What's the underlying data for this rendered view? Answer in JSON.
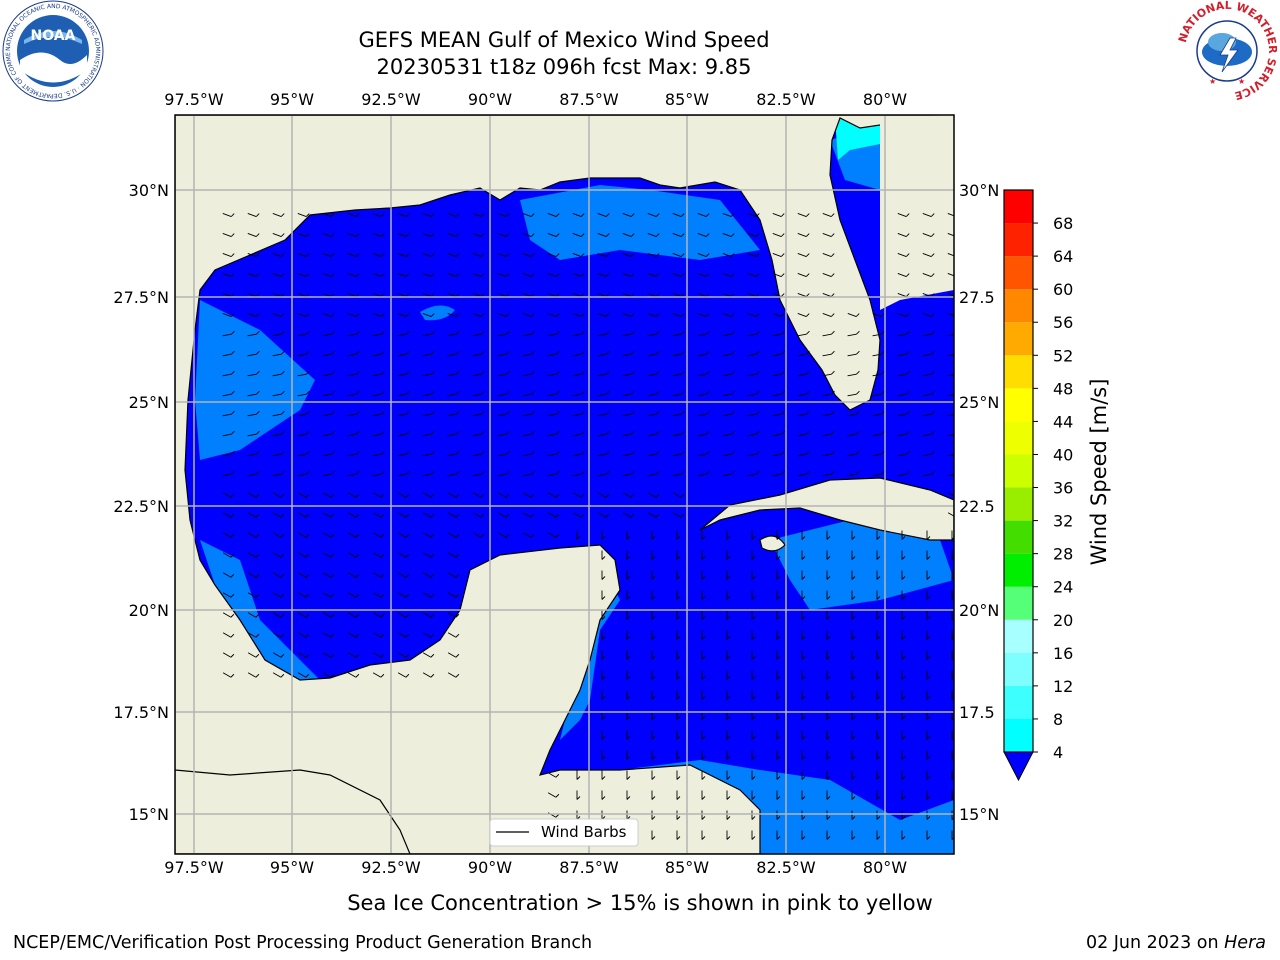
{
  "title": {
    "line1": "GEFS MEAN Gulf of Mexico Wind Speed",
    "line2": "20230531 t18z 096h fcst   Max: 9.85"
  },
  "map": {
    "lon_labels": [
      "97.5°W",
      "95°W",
      "92.5°W",
      "90°W",
      "87.5°W",
      "85°W",
      "82.5°W",
      "80°W"
    ],
    "lat_labels_left": [
      "30°N",
      "27.5°N",
      "25°N",
      "22.5°N",
      "20°N",
      "17.5°N",
      "15°N"
    ],
    "lat_labels_right": [
      "30°N",
      "27.5",
      "25°N",
      "22.5",
      "20°N",
      "17.5",
      "15°N"
    ],
    "legend_label": "Wind Barbs",
    "colors": {
      "land": "#eeeedd",
      "wind_4_8": "#0000ff",
      "wind_lt4": "#0080ff",
      "wind_8_12": "#00ffff",
      "grid": "#b4b4b4"
    }
  },
  "colorbar": {
    "label": "Wind Speed [m/s]",
    "ticks": [
      "4",
      "8",
      "12",
      "16",
      "20",
      "24",
      "28",
      "32",
      "36",
      "40",
      "44",
      "48",
      "52",
      "56",
      "60",
      "64",
      "68"
    ],
    "colors": [
      "#0080ff",
      "#00ffff",
      "#3dfffd",
      "#7dffff",
      "#a8ffff",
      "#55ff77",
      "#00ee00",
      "#44dd00",
      "#99ee00",
      "#ccff00",
      "#eeff00",
      "#ffff00",
      "#ffdd00",
      "#ffaa00",
      "#ff8800",
      "#ff5500",
      "#ff2200",
      "#ff0000"
    ]
  },
  "logos": {
    "noaa_text": "NOAA",
    "noaa_ring": "NATIONAL OCEANIC AND ATMOSPHERIC ADMINISTRATION · U.S. DEPARTMENT OF COMMERCE",
    "nws_ring": "NATIONAL WEATHER SERVICE"
  },
  "caption": "Sea Ice Concentration > 15% is shown in pink to yellow",
  "footer": {
    "left": "NCEP/EMC/Verification Post Processing Product Generation Branch",
    "right_date": "02 Jun 2023 on ",
    "right_machine": "Hera"
  }
}
